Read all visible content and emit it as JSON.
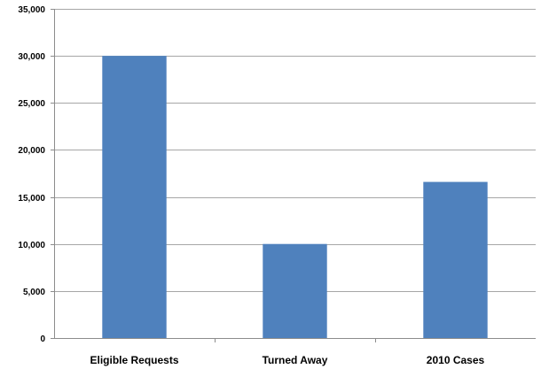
{
  "chart_data": {
    "type": "bar",
    "title": "",
    "xlabel": "",
    "ylabel": "",
    "categories": [
      "Eligible Requests",
      "Turned Away",
      "2010 Cases"
    ],
    "series": [
      {
        "values": [
          30000,
          10000,
          16600
        ],
        "color": "#4f81bd"
      }
    ],
    "ylim": [
      0,
      35000
    ],
    "yticks": [
      0,
      5000,
      10000,
      15000,
      20000,
      25000,
      30000,
      35000
    ],
    "ytick_labels": [
      "0",
      "5,000",
      "10,000",
      "15,000",
      "20,000",
      "25,000",
      "30,000",
      "35,000"
    ],
    "grid": true,
    "legend": "none"
  }
}
